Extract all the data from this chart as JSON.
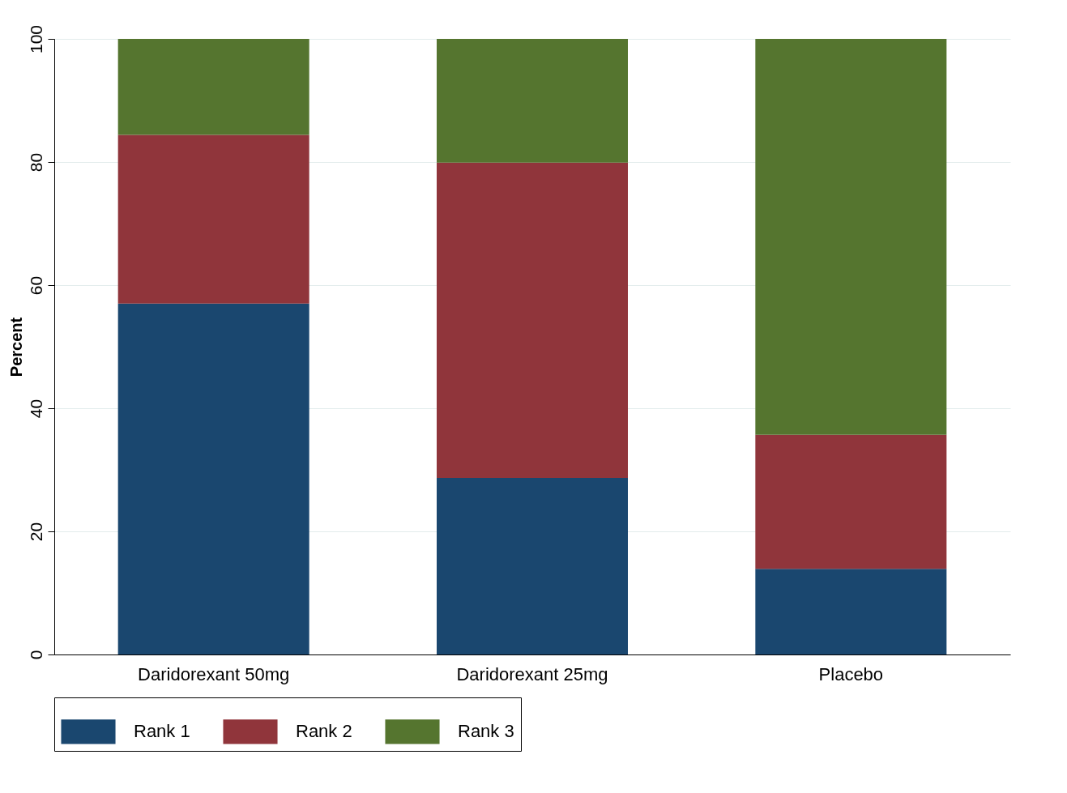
{
  "chart_data": {
    "type": "bar",
    "stacked": true,
    "ylabel": "Percent",
    "categories": [
      "Daridorexant 50mg",
      "Daridorexant 25mg",
      "Placebo"
    ],
    "series": [
      {
        "name": "Rank 1",
        "color": "#1a476f",
        "values": [
          57.0,
          28.7,
          13.9
        ]
      },
      {
        "name": "Rank 2",
        "color": "#90353b",
        "values": [
          27.4,
          51.2,
          21.8
        ]
      },
      {
        "name": "Rank 3",
        "color": "#55752f",
        "values": [
          15.6,
          20.1,
          64.3
        ]
      }
    ],
    "ylim": [
      0,
      100
    ],
    "yticks": [
      0,
      20,
      40,
      60,
      80,
      100
    ],
    "grid": "y",
    "legend": "bottom"
  }
}
